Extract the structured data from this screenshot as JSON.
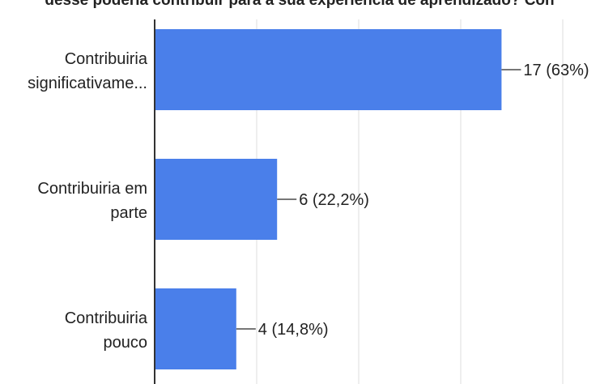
{
  "chart_data": {
    "type": "bar",
    "orientation": "horizontal",
    "title": "desse poderia contribuir para a sua experiência de aprendizado? Con",
    "categories": [
      [
        "Contribuiria",
        "significativame..."
      ],
      [
        "Contribuiria em",
        "parte"
      ],
      [
        "Contribuiria",
        "pouco"
      ]
    ],
    "values": [
      17,
      6,
      4
    ],
    "value_labels": [
      "17 (63%)",
      "6 (22,2%)",
      "4 (14,8%)"
    ],
    "xlim": [
      0,
      20
    ],
    "grid": true,
    "bar_color": "#4a7fea",
    "legend": "none"
  }
}
